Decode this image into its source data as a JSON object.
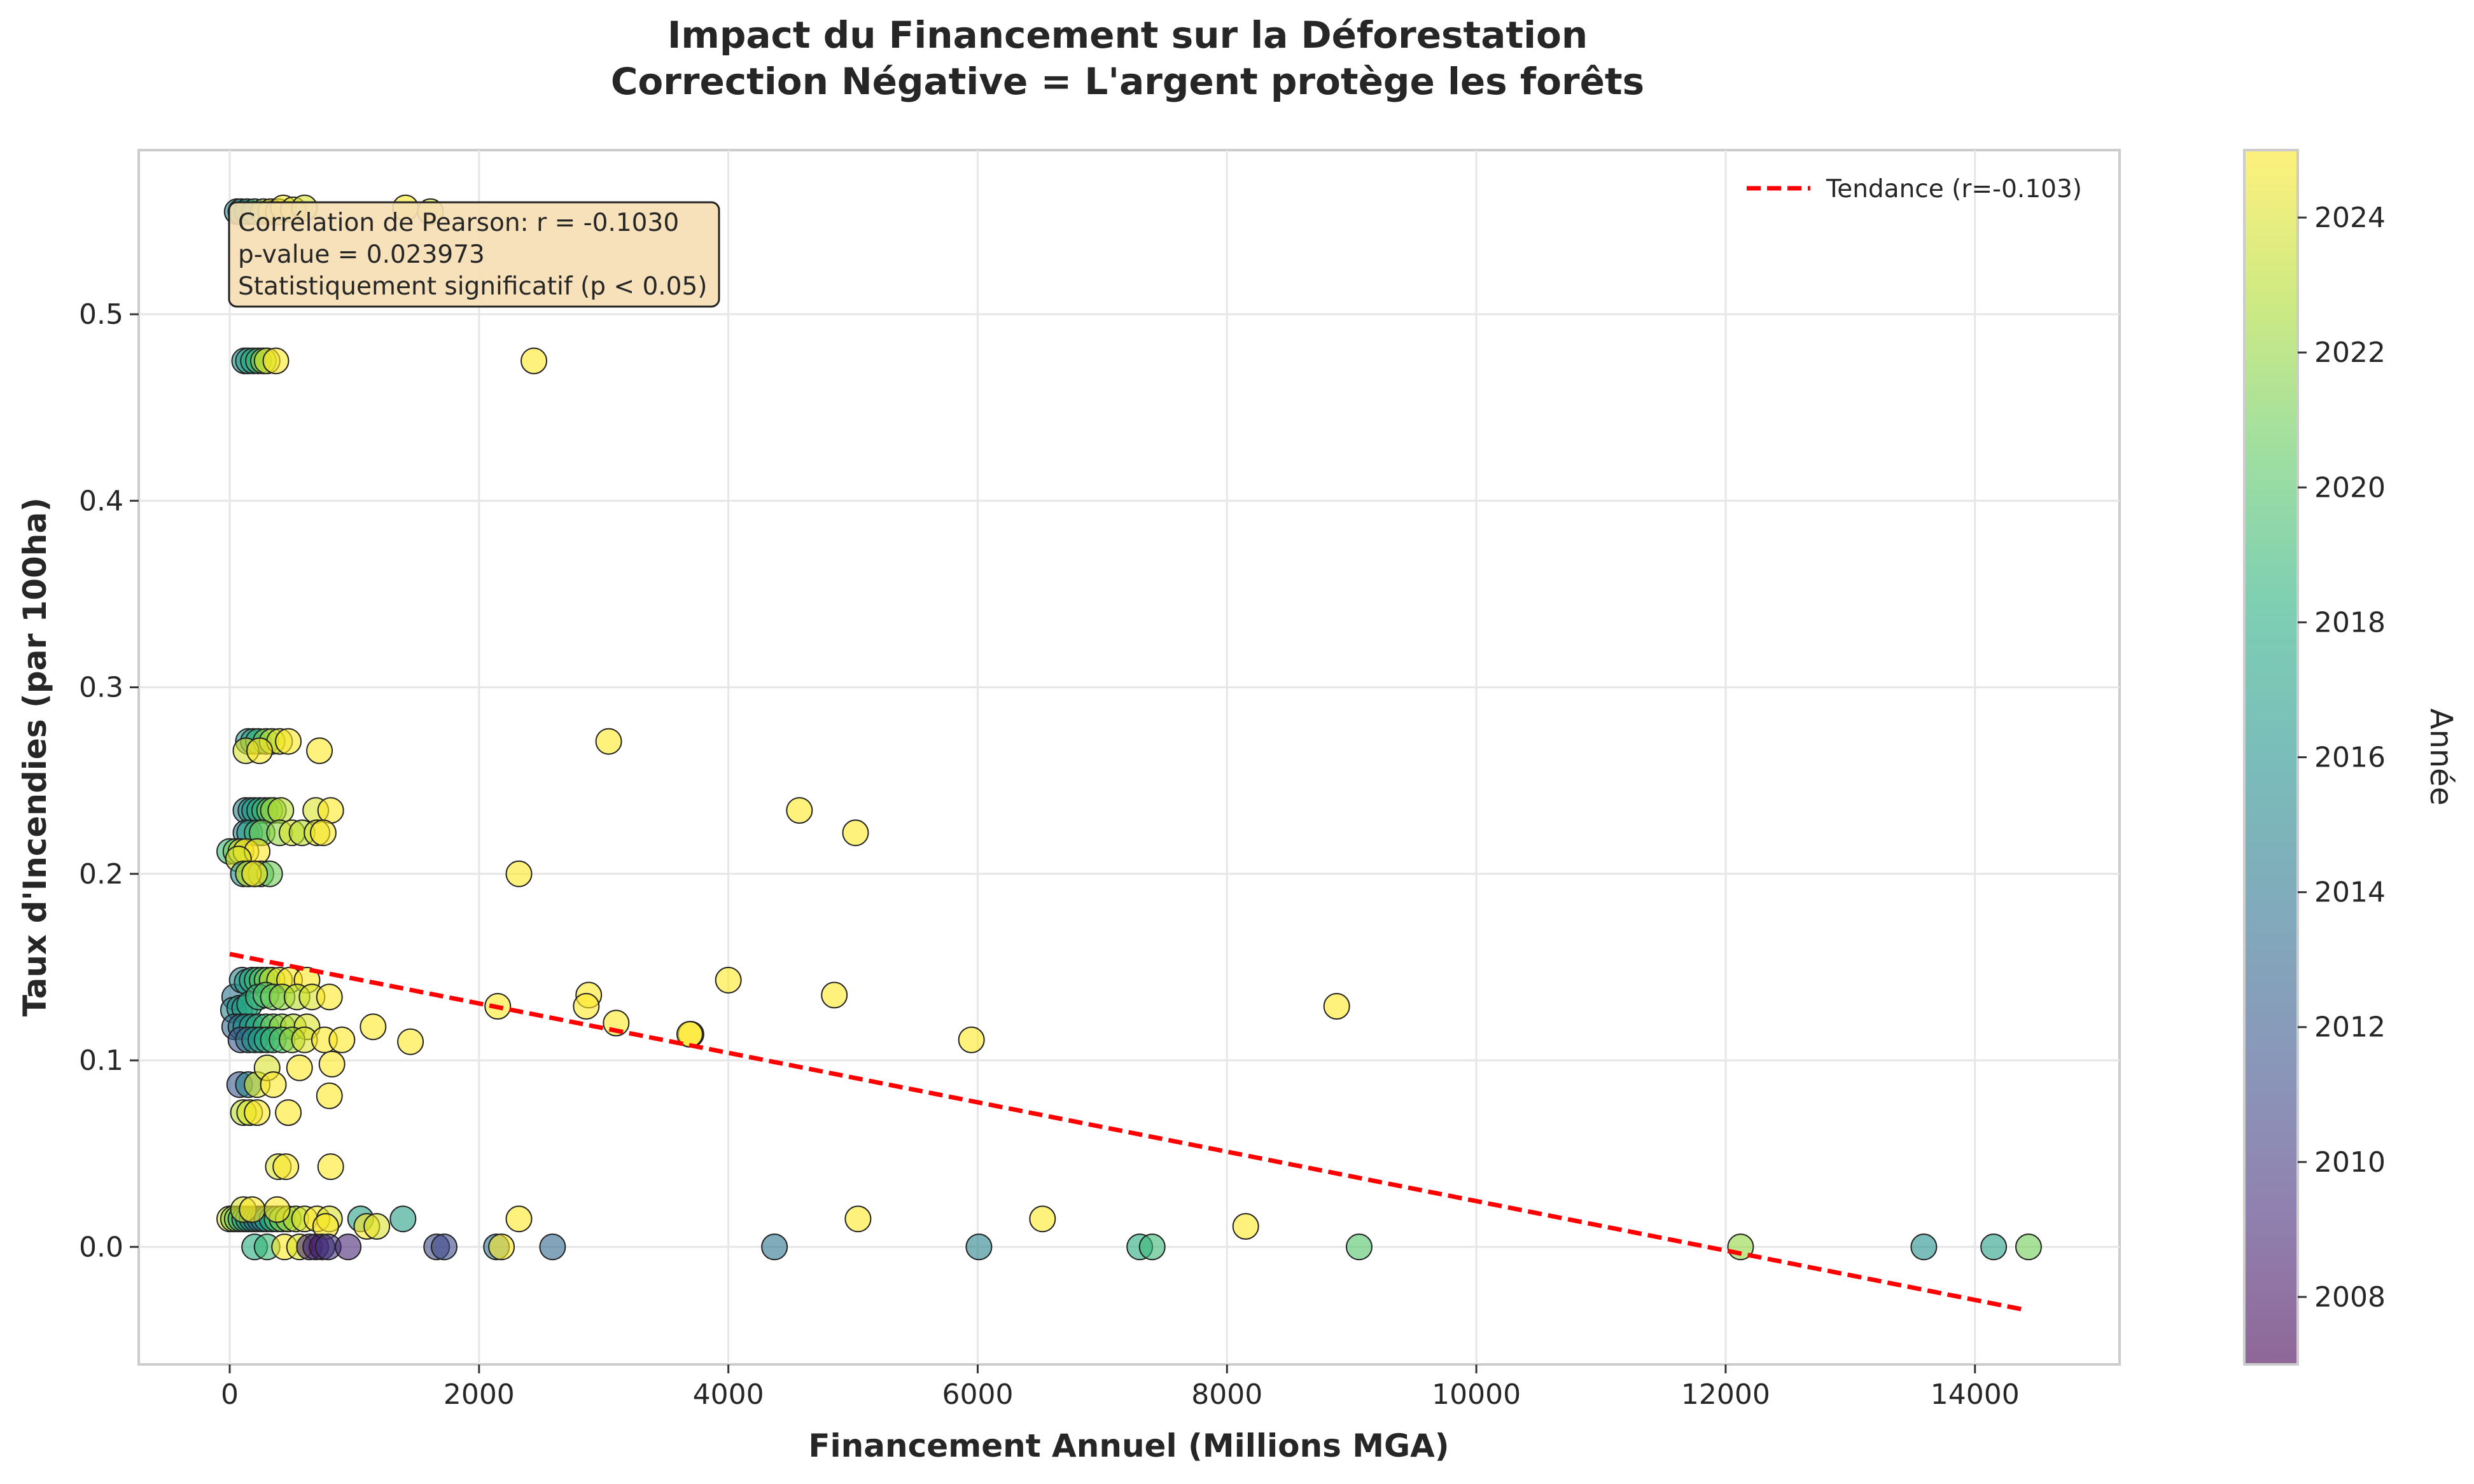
{
  "chart_data": {
    "type": "scatter",
    "title": "Impact du Financement sur la Déforestation",
    "subtitle": "Correction Négative = L'argent protège les forêts",
    "xlabel": "Financement Annuel (Millions MGA)",
    "ylabel": "Taux d'Incendies (par 100ha)",
    "xlim": [
      -730,
      15160
    ],
    "ylim": [
      -0.063,
      0.588
    ],
    "xticks": [
      0,
      2000,
      4000,
      6000,
      8000,
      10000,
      12000,
      14000
    ],
    "yticks": [
      0.0,
      0.1,
      0.2,
      0.3,
      0.4,
      0.5
    ],
    "grid": true,
    "legend_position": "top-right",
    "trend": {
      "label": "Tendance (r=-0.103)",
      "color": "#ff0000",
      "x": [
        0,
        14420
      ],
      "y": [
        0.157,
        -0.034
      ]
    },
    "annotation": {
      "lines": [
        "Corrélation de Pearson: r = -0.1030",
        "p-value = 0.023973",
        "Statistiquement significatif (p < 0.05)"
      ],
      "position": "top-left"
    },
    "colorbar": {
      "label": "Année",
      "colormap": "viridis",
      "range": [
        2007,
        2025
      ],
      "ticks": [
        2008,
        2010,
        2012,
        2014,
        2016,
        2018,
        2020,
        2022,
        2024
      ]
    },
    "points": [
      [
        60,
        0.555,
        2015
      ],
      [
        90,
        0.555,
        2016
      ],
      [
        140,
        0.555,
        2017
      ],
      [
        200,
        0.555,
        2019
      ],
      [
        270,
        0.555,
        2023
      ],
      [
        330,
        0.555,
        2025
      ],
      [
        390,
        0.555,
        2024
      ],
      [
        430,
        0.557,
        2025
      ],
      [
        510,
        0.556,
        2024
      ],
      [
        600,
        0.557,
        2024
      ],
      [
        1410,
        0.557,
        2025
      ],
      [
        1610,
        0.555,
        2024
      ],
      [
        120,
        0.475,
        2016
      ],
      [
        150,
        0.475,
        2017
      ],
      [
        190,
        0.475,
        2018
      ],
      [
        230,
        0.475,
        2019
      ],
      [
        270,
        0.475,
        2022
      ],
      [
        300,
        0.475,
        2024
      ],
      [
        370,
        0.475,
        2025
      ],
      [
        2440,
        0.475,
        2025
      ],
      [
        150,
        0.271,
        2016
      ],
      [
        190,
        0.271,
        2017
      ],
      [
        230,
        0.271,
        2019
      ],
      [
        290,
        0.271,
        2021
      ],
      [
        340,
        0.271,
        2023
      ],
      [
        400,
        0.271,
        2024
      ],
      [
        470,
        0.271,
        2025
      ],
      [
        130,
        0.266,
        2024
      ],
      [
        240,
        0.266,
        2025
      ],
      [
        720,
        0.266,
        2025
      ],
      [
        3040,
        0.271,
        2025
      ],
      [
        130,
        0.234,
        2015
      ],
      [
        170,
        0.234,
        2016
      ],
      [
        200,
        0.234,
        2017
      ],
      [
        240,
        0.234,
        2018
      ],
      [
        280,
        0.234,
        2019
      ],
      [
        320,
        0.234,
        2021
      ],
      [
        350,
        0.234,
        2022
      ],
      [
        410,
        0.234,
        2023
      ],
      [
        690,
        0.234,
        2024
      ],
      [
        810,
        0.234,
        2025
      ],
      [
        4570,
        0.234,
        2025
      ],
      [
        130,
        0.222,
        2015
      ],
      [
        160,
        0.222,
        2017
      ],
      [
        220,
        0.222,
        2019
      ],
      [
        260,
        0.222,
        2021
      ],
      [
        400,
        0.222,
        2022
      ],
      [
        500,
        0.222,
        2024
      ],
      [
        580,
        0.222,
        2023
      ],
      [
        700,
        0.222,
        2024
      ],
      [
        750,
        0.222,
        2025
      ],
      [
        5020,
        0.222,
        2025
      ],
      [
        0,
        0.212,
        2019
      ],
      [
        50,
        0.212,
        2021
      ],
      [
        90,
        0.212,
        2024
      ],
      [
        130,
        0.212,
        2025
      ],
      [
        220,
        0.212,
        2025
      ],
      [
        70,
        0.208,
        2024
      ],
      [
        110,
        0.2,
        2016
      ],
      [
        150,
        0.2,
        2018
      ],
      [
        200,
        0.2,
        2019
      ],
      [
        250,
        0.2,
        2020
      ],
      [
        320,
        0.2,
        2021
      ],
      [
        150,
        0.2,
        2024
      ],
      [
        200,
        0.2,
        2025
      ],
      [
        2320,
        0.2,
        2025
      ],
      [
        40,
        0.134,
        2014
      ],
      [
        100,
        0.143,
        2015
      ],
      [
        140,
        0.142,
        2017
      ],
      [
        180,
        0.143,
        2018
      ],
      [
        220,
        0.143,
        2019
      ],
      [
        260,
        0.143,
        2020
      ],
      [
        300,
        0.143,
        2021
      ],
      [
        340,
        0.143,
        2023
      ],
      [
        400,
        0.143,
        2024
      ],
      [
        480,
        0.143,
        2025
      ],
      [
        620,
        0.143,
        2025
      ],
      [
        4000,
        0.143,
        2025
      ],
      [
        30,
        0.127,
        2015
      ],
      [
        80,
        0.128,
        2016
      ],
      [
        120,
        0.128,
        2017
      ],
      [
        160,
        0.13,
        2018
      ],
      [
        230,
        0.134,
        2019
      ],
      [
        290,
        0.135,
        2020
      ],
      [
        350,
        0.134,
        2021
      ],
      [
        420,
        0.134,
        2022
      ],
      [
        540,
        0.134,
        2023
      ],
      [
        660,
        0.134,
        2024
      ],
      [
        800,
        0.134,
        2025
      ],
      [
        2150,
        0.129,
        2025
      ],
      [
        2880,
        0.135,
        2025
      ],
      [
        2860,
        0.129,
        2025
      ],
      [
        4850,
        0.135,
        2025
      ],
      [
        8880,
        0.129,
        2025
      ],
      [
        40,
        0.118,
        2013
      ],
      [
        90,
        0.118,
        2014
      ],
      [
        130,
        0.118,
        2016
      ],
      [
        180,
        0.118,
        2017
      ],
      [
        230,
        0.118,
        2018
      ],
      [
        290,
        0.118,
        2019
      ],
      [
        350,
        0.118,
        2021
      ],
      [
        420,
        0.118,
        2022
      ],
      [
        510,
        0.118,
        2023
      ],
      [
        620,
        0.118,
        2024
      ],
      [
        1150,
        0.118,
        2025
      ],
      [
        3100,
        0.12,
        2025
      ],
      [
        3700,
        0.114,
        2025
      ],
      [
        3690,
        0.114,
        2025
      ],
      [
        90,
        0.111,
        2012
      ],
      [
        150,
        0.111,
        2014
      ],
      [
        200,
        0.111,
        2016
      ],
      [
        250,
        0.111,
        2017
      ],
      [
        300,
        0.111,
        2018
      ],
      [
        350,
        0.111,
        2019
      ],
      [
        420,
        0.111,
        2020
      ],
      [
        500,
        0.111,
        2022
      ],
      [
        600,
        0.111,
        2024
      ],
      [
        760,
        0.111,
        2025
      ],
      [
        900,
        0.111,
        2025
      ],
      [
        1450,
        0.11,
        2025
      ],
      [
        5950,
        0.111,
        2025
      ],
      [
        80,
        0.087,
        2012
      ],
      [
        150,
        0.087,
        2015
      ],
      [
        220,
        0.087,
        2024
      ],
      [
        300,
        0.096,
        2024
      ],
      [
        350,
        0.087,
        2025
      ],
      [
        560,
        0.096,
        2025
      ],
      [
        820,
        0.098,
        2025
      ],
      [
        800,
        0.081,
        2025
      ],
      [
        110,
        0.072,
        2023
      ],
      [
        160,
        0.072,
        2024
      ],
      [
        220,
        0.072,
        2025
      ],
      [
        470,
        0.072,
        2025
      ],
      [
        390,
        0.043,
        2024
      ],
      [
        450,
        0.043,
        2025
      ],
      [
        810,
        0.043,
        2025
      ],
      [
        0,
        0.015,
        2024
      ],
      [
        30,
        0.015,
        2022
      ],
      [
        60,
        0.015,
        2021
      ],
      [
        90,
        0.015,
        2019
      ],
      [
        120,
        0.015,
        2018
      ],
      [
        150,
        0.015,
        2017
      ],
      [
        180,
        0.015,
        2016
      ],
      [
        210,
        0.015,
        2015
      ],
      [
        240,
        0.015,
        2014
      ],
      [
        270,
        0.015,
        2016
      ],
      [
        300,
        0.015,
        2017
      ],
      [
        340,
        0.015,
        2018
      ],
      [
        380,
        0.015,
        2020
      ],
      [
        420,
        0.015,
        2021
      ],
      [
        470,
        0.015,
        2022
      ],
      [
        530,
        0.015,
        2023
      ],
      [
        600,
        0.015,
        2024
      ],
      [
        700,
        0.015,
        2025
      ],
      [
        800,
        0.015,
        2024
      ],
      [
        1050,
        0.015,
        2017
      ],
      [
        1390,
        0.015,
        2017
      ],
      [
        2320,
        0.015,
        2025
      ],
      [
        5040,
        0.015,
        2025
      ],
      [
        6520,
        0.015,
        2025
      ],
      [
        110,
        0.02,
        2024
      ],
      [
        180,
        0.02,
        2025
      ],
      [
        380,
        0.02,
        2025
      ],
      [
        770,
        0.011,
        2025
      ],
      [
        1100,
        0.011,
        2025
      ],
      [
        1180,
        0.011,
        2024
      ],
      [
        8150,
        0.011,
        2025
      ],
      [
        200,
        0.0,
        2018
      ],
      [
        300,
        0.0,
        2019
      ],
      [
        440,
        0.0,
        2025
      ],
      [
        560,
        0.0,
        2024
      ],
      [
        640,
        0.0,
        2009
      ],
      [
        690,
        0.0,
        2009
      ],
      [
        740,
        0.0,
        2008
      ],
      [
        790,
        0.0,
        2010
      ],
      [
        950,
        0.0,
        2009
      ],
      [
        1660,
        0.0,
        2011
      ],
      [
        1720,
        0.0,
        2011
      ],
      [
        2140,
        0.0,
        2014
      ],
      [
        2180,
        0.0,
        2025
      ],
      [
        2590,
        0.0,
        2013
      ],
      [
        4370,
        0.0,
        2014
      ],
      [
        6010,
        0.0,
        2015
      ],
      [
        7300,
        0.0,
        2018
      ],
      [
        7400,
        0.0,
        2019
      ],
      [
        9060,
        0.0,
        2020
      ],
      [
        12120,
        0.0,
        2022
      ],
      [
        13590,
        0.0,
        2016
      ],
      [
        14150,
        0.0,
        2017
      ],
      [
        14430,
        0.0,
        2021
      ]
    ]
  }
}
